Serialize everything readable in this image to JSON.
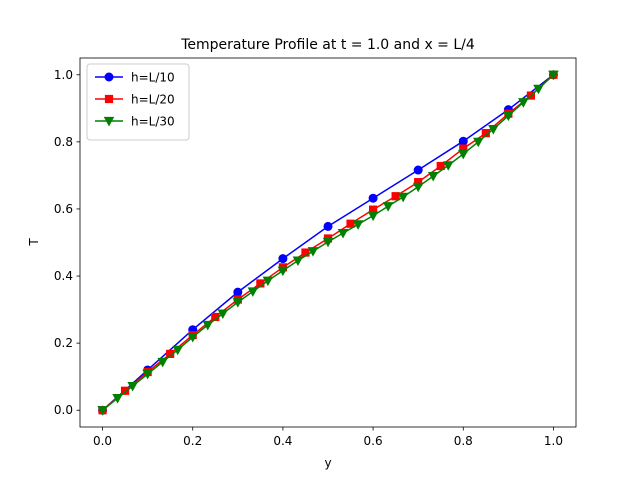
{
  "chart_data": {
    "type": "line",
    "title": "Temperature Profile at t = 1.0 and x = L/4",
    "xlabel": "y",
    "ylabel": "T",
    "xlim": [
      -0.05,
      1.05
    ],
    "ylim": [
      -0.05,
      1.05
    ],
    "xticks": [
      "0.0",
      "0.2",
      "0.4",
      "0.6",
      "0.8",
      "1.0"
    ],
    "yticks": [
      "0.0",
      "0.2",
      "0.4",
      "0.6",
      "0.8",
      "1.0"
    ],
    "grid": false,
    "legend_position": "upper-left",
    "series": [
      {
        "name": "h=L/10",
        "color": "#0000ff",
        "marker": "circle",
        "x": [
          0.0,
          0.1,
          0.2,
          0.3,
          0.4,
          0.5,
          0.6,
          0.7,
          0.8,
          0.9,
          1.0
        ],
        "y": [
          0.0,
          0.12,
          0.24,
          0.352,
          0.452,
          0.548,
          0.632,
          0.716,
          0.802,
          0.896,
          1.0
        ]
      },
      {
        "name": "h=L/20",
        "color": "#ff0000",
        "marker": "square",
        "x": [
          0.0,
          0.05,
          0.1,
          0.15,
          0.2,
          0.25,
          0.3,
          0.35,
          0.4,
          0.45,
          0.5,
          0.55,
          0.6,
          0.65,
          0.7,
          0.75,
          0.8,
          0.85,
          0.9,
          0.95,
          1.0
        ],
        "y": [
          0.0,
          0.058,
          0.114,
          0.168,
          0.224,
          0.278,
          0.33,
          0.378,
          0.426,
          0.47,
          0.512,
          0.556,
          0.598,
          0.638,
          0.68,
          0.728,
          0.78,
          0.826,
          0.884,
          0.938,
          1.0
        ]
      },
      {
        "name": "h=L/30",
        "color": "#008000",
        "marker": "triangle-down",
        "x": [
          0.0,
          0.0333,
          0.0667,
          0.1,
          0.1333,
          0.1667,
          0.2,
          0.2333,
          0.2667,
          0.3,
          0.3333,
          0.3667,
          0.4,
          0.4333,
          0.4667,
          0.5,
          0.5333,
          0.5667,
          0.6,
          0.6333,
          0.6667,
          0.7,
          0.7333,
          0.7667,
          0.8,
          0.8333,
          0.8667,
          0.9,
          0.9333,
          0.9667,
          1.0
        ],
        "y": [
          0.0,
          0.036,
          0.072,
          0.108,
          0.144,
          0.18,
          0.218,
          0.254,
          0.288,
          0.322,
          0.354,
          0.386,
          0.416,
          0.446,
          0.474,
          0.502,
          0.528,
          0.554,
          0.58,
          0.608,
          0.636,
          0.666,
          0.698,
          0.73,
          0.764,
          0.8,
          0.838,
          0.878,
          0.918,
          0.958,
          1.0
        ]
      }
    ]
  }
}
